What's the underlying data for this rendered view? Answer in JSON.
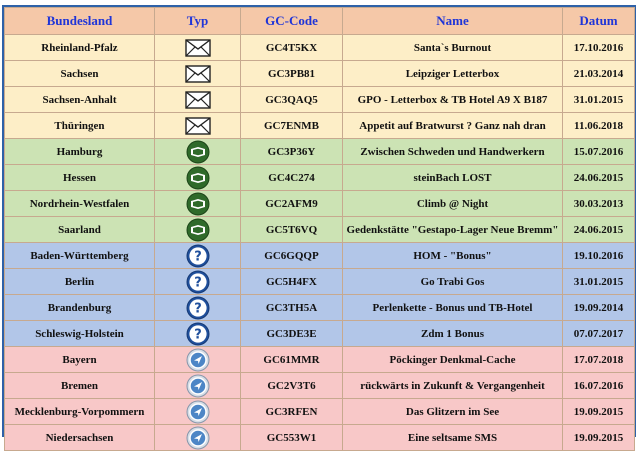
{
  "headers": {
    "bundesland": "Bundesland",
    "typ": "Typ",
    "code": "GC-Code",
    "name": "Name",
    "datum": "Datum"
  },
  "colors": {
    "header_bg": "#f5c8a8",
    "header_text": "#1f35d8",
    "letterbox_bg": "#fdeec7",
    "traditional_bg": "#cce3b4",
    "mystery_bg": "#b2c6e8",
    "wherigo_bg": "#f8c8c8"
  },
  "rows": [
    {
      "bundesland": "Rheinland-Pfalz",
      "icon": "envelope-icon",
      "code": "GC4T5KX",
      "name": "Santa`s Burnout",
      "datum": "17.10.2016"
    },
    {
      "bundesland": "Sachsen",
      "icon": "envelope-icon",
      "code": "GC3PB81",
      "name": "Leipziger Letterbox",
      "datum": "21.03.2014"
    },
    {
      "bundesland": "Sachsen-Anhalt",
      "icon": "envelope-icon",
      "code": "GC3QAQ5",
      "name": "GPO - Letterbox  & TB Hotel A9 X B187",
      "datum": "31.01.2015"
    },
    {
      "bundesland": "Thüringen",
      "icon": "envelope-icon",
      "code": "GC7ENMB",
      "name": "Appetit auf Bratwurst ? Ganz nah dran",
      "datum": "11.06.2018"
    },
    {
      "bundesland": "Hamburg",
      "icon": "traditional-cache-icon",
      "code": "GC3P36Y",
      "name": "Zwischen Schweden und Handwerkern",
      "datum": "15.07.2016"
    },
    {
      "bundesland": "Hessen",
      "icon": "traditional-cache-icon",
      "code": "GC4C274",
      "name": "steinBach LOST",
      "datum": "24.06.2015"
    },
    {
      "bundesland": "Nordrhein-Westfalen",
      "icon": "traditional-cache-icon",
      "code": "GC2AFM9",
      "name": "Climb @ Night",
      "datum": "30.03.2013"
    },
    {
      "bundesland": "Saarland",
      "icon": "traditional-cache-icon",
      "code": "GC5T6VQ",
      "name": "Gedenkstätte \"Gestapo-Lager Neue Bremm\"",
      "datum": "24.06.2015"
    },
    {
      "bundesland": "Baden-Württemberg",
      "icon": "question-mark-icon",
      "code": "GC6GQQP",
      "name": "HOM - \"Bonus\"",
      "datum": "19.10.2016"
    },
    {
      "bundesland": "Berlin",
      "icon": "question-mark-icon",
      "code": "GC5H4FX",
      "name": "Go Trabi Gos",
      "datum": "31.01.2015"
    },
    {
      "bundesland": "Brandenburg",
      "icon": "question-mark-icon",
      "code": "GC3TH5A",
      "name": "Perlenkette - Bonus und TB-Hotel",
      "datum": "19.09.2014"
    },
    {
      "bundesland": "Schleswig-Holstein",
      "icon": "question-mark-icon",
      "code": "GC3DE3E",
      "name": "Zdm 1 Bonus",
      "datum": "07.07.2017"
    },
    {
      "bundesland": "Bayern",
      "icon": "wherigo-icon",
      "code": "GC61MMR",
      "name": "Pöckinger Denkmal-Cache",
      "datum": "17.07.2018"
    },
    {
      "bundesland": "Bremen",
      "icon": "wherigo-icon",
      "code": "GC2V3T6",
      "name": "rückwärts in Zukunft & Vergangenheit",
      "datum": "16.07.2016"
    },
    {
      "bundesland": "Mecklenburg-Vorpommern",
      "icon": "wherigo-icon",
      "code": "GC3RFEN",
      "name": "Das Glitzern im See",
      "datum": "19.09.2015"
    },
    {
      "bundesland": "Niedersachsen",
      "icon": "wherigo-icon",
      "code": "GC553W1",
      "name": "Eine seltsame SMS",
      "datum": "19.09.2015"
    }
  ]
}
